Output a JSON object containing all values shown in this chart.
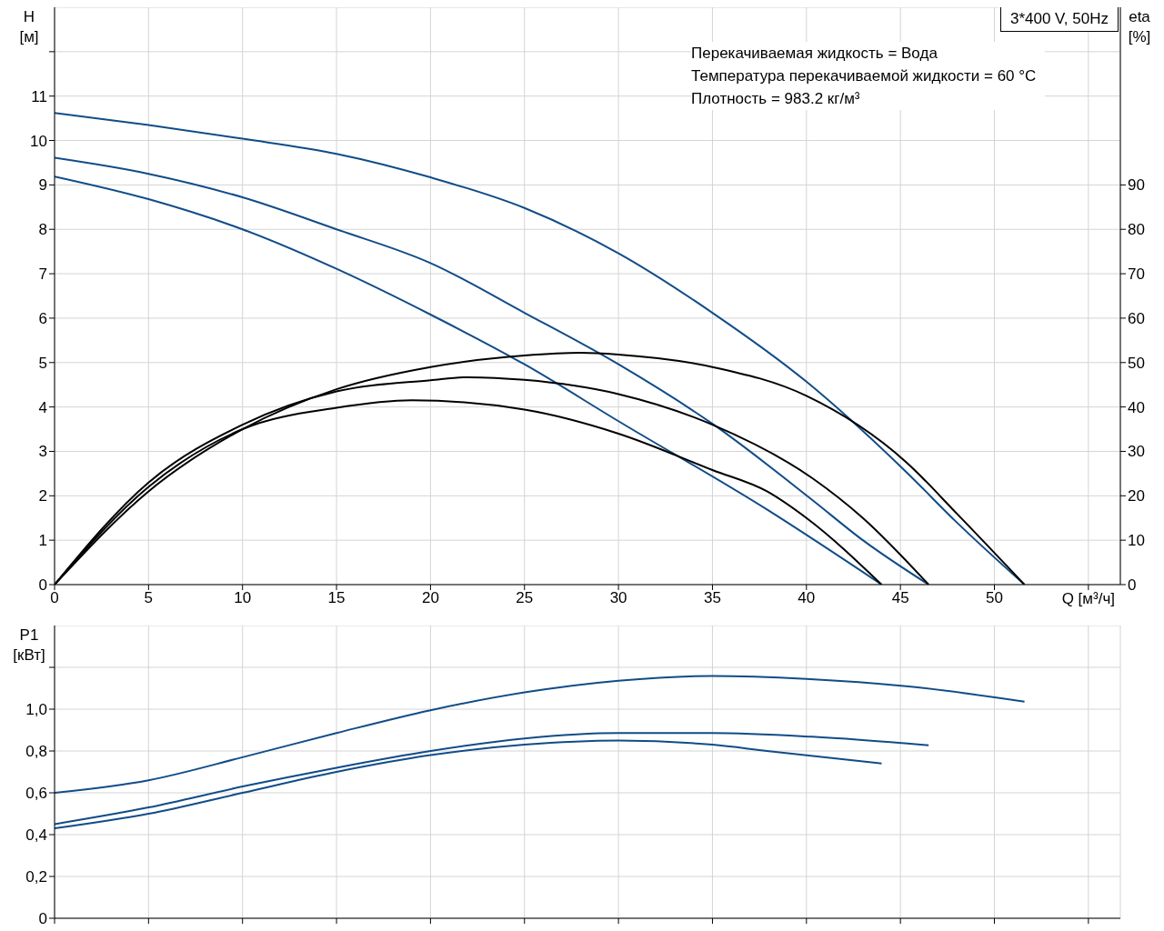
{
  "chart_data": [
    {
      "type": "line",
      "title": "3*400 V, 50Hz",
      "ylabel": "H [м]",
      "y2label": "eta [%]",
      "xlabel": "Q [м³/ч]",
      "annotations": [
        "Перекачиваемая жидкость = Вода",
        "Температура перекачиваемой жидкости = 60 °C",
        "Плотность = 983.2 кг/м³"
      ],
      "xlim": [
        0,
        56.7
      ],
      "xticks": [
        0,
        5,
        10,
        15,
        20,
        25,
        30,
        35,
        40,
        45,
        50,
        {
          "value": 55,
          "label": null
        }
      ],
      "ylim": [
        0,
        13
      ],
      "yticks": [
        0,
        1,
        2,
        3,
        4,
        5,
        6,
        7,
        8,
        9,
        10,
        11,
        {
          "value": 12,
          "label": null
        }
      ],
      "y2lim": [
        0,
        130
      ],
      "y2ticks": [
        0,
        10,
        20,
        30,
        40,
        50,
        60,
        70,
        80,
        90
      ],
      "grid": true,
      "marker": "none",
      "series": [
        {
          "color": "#114c88",
          "x": [
            0,
            5,
            10,
            15,
            20,
            25,
            30,
            35,
            40,
            45.3,
            48,
            51.6
          ],
          "values": [
            10.62,
            10.35,
            10.04,
            9.7,
            9.17,
            8.48,
            7.46,
            6.12,
            4.57,
            2.54,
            1.4,
            0
          ]
        },
        {
          "color": "#114c88",
          "x": [
            0,
            5,
            10,
            15,
            20,
            25,
            30,
            35,
            40.3,
            43,
            46.5
          ],
          "values": [
            9.61,
            9.25,
            8.72,
            8.0,
            7.24,
            6.12,
            4.96,
            3.62,
            1.91,
            1.0,
            0
          ]
        },
        {
          "color": "#114c88",
          "x": [
            0,
            5,
            10,
            15,
            20,
            25,
            30,
            37.9,
            44
          ],
          "values": [
            9.19,
            8.68,
            8.0,
            7.11,
            6.08,
            4.96,
            3.68,
            1.69,
            0
          ]
        },
        {
          "color": "#000000",
          "axis": "y2",
          "x": [
            0,
            5,
            10,
            15,
            20,
            25,
            28,
            30,
            35,
            40,
            45.3,
            48,
            51.6
          ],
          "values": [
            0,
            21,
            35,
            44,
            49,
            51.6,
            52.2,
            51.8,
            49,
            42.5,
            27.6,
            16,
            0
          ]
        },
        {
          "color": "#000000",
          "axis": "y2",
          "x": [
            0,
            5,
            10,
            15,
            20,
            22,
            25,
            30,
            35,
            40.3,
            43,
            46.5
          ],
          "values": [
            0,
            23,
            36,
            43.5,
            46,
            46.7,
            46.1,
            42.9,
            36,
            24,
            15,
            0
          ]
        },
        {
          "color": "#000000",
          "axis": "y2",
          "x": [
            0,
            5,
            10,
            15,
            19,
            25,
            30,
            35,
            37.9,
            40,
            44
          ],
          "values": [
            0,
            22,
            35,
            39.8,
            41.5,
            39.4,
            34,
            25.8,
            21,
            15,
            0
          ]
        }
      ]
    },
    {
      "type": "line",
      "ylabel": "P1 [кВт]",
      "tick_labels": "y",
      "xlim": [
        0,
        56.7
      ],
      "xticks": [
        0,
        5,
        10,
        15,
        20,
        25,
        30,
        35,
        40,
        45,
        50,
        55
      ],
      "ylim": [
        0,
        1.4
      ],
      "yticks": [
        0,
        {
          "value": 0.2,
          "label": "0,2"
        },
        {
          "value": 0.4,
          "label": "0,4"
        },
        {
          "value": 0.6,
          "label": "0,6"
        },
        {
          "value": 0.8,
          "label": "0,8"
        },
        {
          "value": 1.0,
          "label": "1,0"
        },
        {
          "value": 1.2,
          "label": null
        }
      ],
      "grid": true,
      "marker": "none",
      "series": [
        {
          "color": "#114c88",
          "x": [
            0,
            5,
            10,
            15,
            20,
            25,
            30,
            35,
            40,
            45.3,
            51.6
          ],
          "values": [
            0.6,
            0.66,
            0.77,
            0.886,
            0.995,
            1.08,
            1.136,
            1.159,
            1.145,
            1.11,
            1.036
          ]
        },
        {
          "color": "#114c88",
          "x": [
            0,
            5,
            10,
            15,
            20,
            25,
            30,
            35,
            40.3,
            46.5
          ],
          "values": [
            0.45,
            0.53,
            0.63,
            0.72,
            0.8,
            0.86,
            0.886,
            0.886,
            0.868,
            0.827
          ]
        },
        {
          "color": "#114c88",
          "x": [
            0,
            5,
            10,
            15,
            20,
            25,
            30,
            35,
            37.9,
            44
          ],
          "values": [
            0.43,
            0.5,
            0.6,
            0.7,
            0.78,
            0.83,
            0.85,
            0.83,
            0.8,
            0.74
          ]
        }
      ]
    }
  ]
}
